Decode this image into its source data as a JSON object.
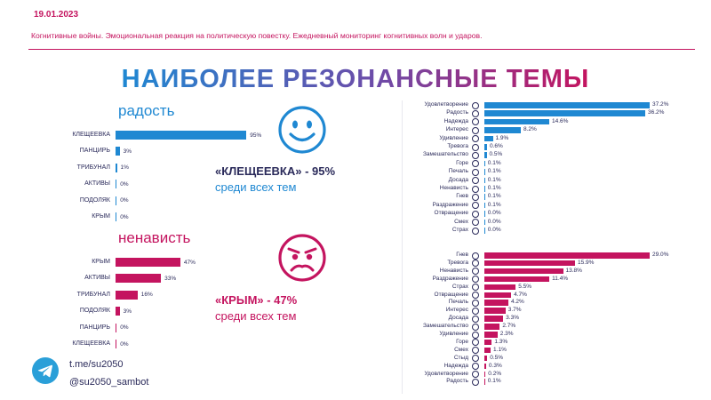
{
  "header": {
    "date": "19.01.2023",
    "subtitle": "Когнитивные войны. Эмоциональная реакция на политическую повестку. Ежедневный мониторинг когнитивных волн и ударов."
  },
  "title": "НАИБОЛЕЕ РЕЗОНАНСНЫЕ ТЕМЫ",
  "colors": {
    "joy": "#1f88d2",
    "hate": "#c4145f",
    "accent_purple": "#6e4ba8"
  },
  "joy_section": {
    "label": "радость",
    "callout_topic": "«КЛЕЩЕЕВКА»",
    "callout_pct": " - 95%",
    "callout_rest": "среди всех тем",
    "face_icon": "smiley-face-icon"
  },
  "hate_section": {
    "label": "ненависть",
    "callout_topic": "«КРЫМ»",
    "callout_pct": " - 47%",
    "callout_rest": "среди всех тем",
    "face_icon": "angry-face-icon"
  },
  "contacts": {
    "line1": "t.me/su2050",
    "line2": "@su2050_sambot",
    "icon": "telegram-icon"
  },
  "chart_data": [
    {
      "type": "bar",
      "orientation": "horizontal",
      "categories": [
        "КЛЕЩЕЕВКА",
        "ПАНЦИРЬ",
        "ТРИБУНАЛ",
        "АКТИВЫ",
        "ПОДОЛЯК",
        "КРЫМ"
      ],
      "values": [
        95,
        3,
        1,
        0,
        0,
        0
      ],
      "value_labels": [
        "95%",
        "3%",
        "1%",
        "0%",
        "0%",
        "0%"
      ],
      "xlim": [
        0,
        100
      ],
      "color": "#1f88d2"
    },
    {
      "type": "bar",
      "orientation": "horizontal",
      "categories": [
        "КРЫМ",
        "АКТИВЫ",
        "ТРИБУНАЛ",
        "ПОДОЛЯК",
        "ПАНЦИРЬ",
        "КЛЕЩЕЕВКА"
      ],
      "values": [
        47,
        33,
        16,
        3,
        0,
        0
      ],
      "value_labels": [
        "47%",
        "33%",
        "16%",
        "3%",
        "0%",
        "0%"
      ],
      "xlim": [
        0,
        100
      ],
      "color": "#c4145f"
    },
    {
      "type": "bar",
      "orientation": "horizontal",
      "categories": [
        "Удовлетворение",
        "Радость",
        "Надежда",
        "Интерес",
        "Удивление",
        "Тревога",
        "Замешательство",
        "Горе",
        "Печаль",
        "Досада",
        "Ненависть",
        "Гнев",
        "Раздражение",
        "Отвращение",
        "Смех",
        "Страх"
      ],
      "values": [
        37.2,
        36.2,
        14.6,
        8.2,
        1.9,
        0.6,
        0.5,
        0.1,
        0.1,
        0.1,
        0.1,
        0.1,
        0.1,
        0.0,
        0.0,
        0.0
      ],
      "value_labels": [
        "37.2%",
        "36.2%",
        "14.6%",
        "8.2%",
        "1.9%",
        "0.6%",
        "0.5%",
        "0.1%",
        "0.1%",
        "0.1%",
        "0.1%",
        "0.1%",
        "0.1%",
        "0.0%",
        "0.0%",
        "0.0%"
      ],
      "xlim": [
        0,
        37.2
      ],
      "color": "#1f88d2"
    },
    {
      "type": "bar",
      "orientation": "horizontal",
      "categories": [
        "Гнев",
        "Тревога",
        "Ненависть",
        "Раздражение",
        "Страх",
        "Отвращение",
        "Печаль",
        "Интерес",
        "Досада",
        "Замешательство",
        "Удивление",
        "Горе",
        "Смех",
        "Стыд",
        "Надежда",
        "Удовлетворение",
        "Радость"
      ],
      "values": [
        29.0,
        15.9,
        13.8,
        11.4,
        5.5,
        4.7,
        4.2,
        3.7,
        3.3,
        2.7,
        2.3,
        1.3,
        1.1,
        0.5,
        0.3,
        0.2,
        0.1
      ],
      "value_labels": [
        "29.0%",
        "15.9%",
        "13.8%",
        "11.4%",
        "5.5%",
        "4.7%",
        "4.2%",
        "3.7%",
        "3.3%",
        "2.7%",
        "2.3%",
        "1.3%",
        "1.1%",
        "0.5%",
        "0.3%",
        "0.2%",
        "0.1%"
      ],
      "xlim": [
        0,
        29.0
      ],
      "color": "#c4145f"
    }
  ]
}
